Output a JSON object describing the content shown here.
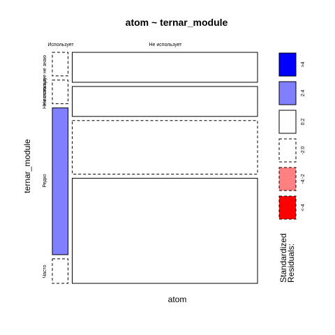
{
  "chart_data": {
    "type": "mosaic",
    "title": "atom ~ ternar_module",
    "xlabel": "atom",
    "ylabel": "ternar_module",
    "x_categories": [
      "Использует",
      "Не использует"
    ],
    "y_categories": [
      "Не использую и не знаю",
      "Не использую",
      "Редко",
      "Часто"
    ],
    "y_labels": [
      "Не используе",
      "Не используе не знаю",
      "Редко",
      "Часто"
    ],
    "x_proportions": [
      0.078,
      0.922
    ],
    "y_proportions": [
      [
        0.108,
        0.108,
        0.672,
        0.112
      ],
      [
        0.137,
        0.137,
        0.245,
        0.481
      ]
    ],
    "cells": [
      {
        "x": "Использует",
        "y": "Не использую и не знаю",
        "residual_class": "<0",
        "fill": "#ffffff",
        "dashed": true
      },
      {
        "x": "Использует",
        "y": "Не использую",
        "residual_class": "<0",
        "fill": "#ffffff",
        "dashed": true
      },
      {
        "x": "Использует",
        "y": "Редко",
        "residual_class": "2:4",
        "fill": "#8080ff",
        "dashed": false
      },
      {
        "x": "Использует",
        "y": "Часто",
        "residual_class": "<0",
        "fill": "#ffffff",
        "dashed": true
      },
      {
        "x": "Не использует",
        "y": "Не использую и не знаю",
        "residual_class": "0:2",
        "fill": "#ffffff",
        "dashed": false
      },
      {
        "x": "Не использует",
        "y": "Не использую",
        "residual_class": "0:2",
        "fill": "#ffffff",
        "dashed": false
      },
      {
        "x": "Не использует",
        "y": "Редко",
        "residual_class": "-2:0",
        "fill": "#ffffff",
        "dashed": true
      },
      {
        "x": "Не использует",
        "y": "Часто",
        "residual_class": "0:2",
        "fill": "#ffffff",
        "dashed": false
      }
    ],
    "legend": {
      "title_lines": [
        "Standardized",
        "Residuals:"
      ],
      "position": "right",
      "entries": [
        {
          "label": ">4",
          "fill": "#0000ff",
          "dashed": false
        },
        {
          "label": "2:4",
          "fill": "#8080ff",
          "dashed": false
        },
        {
          "label": "0:2",
          "fill": "#ffffff",
          "dashed": false
        },
        {
          "label": "-2:0",
          "fill": "#ffffff",
          "dashed": true
        },
        {
          "label": "-4:-2",
          "fill": "#ff8080",
          "dashed": true
        },
        {
          "label": "<-4",
          "fill": "#ff0000",
          "dashed": true
        }
      ]
    }
  }
}
